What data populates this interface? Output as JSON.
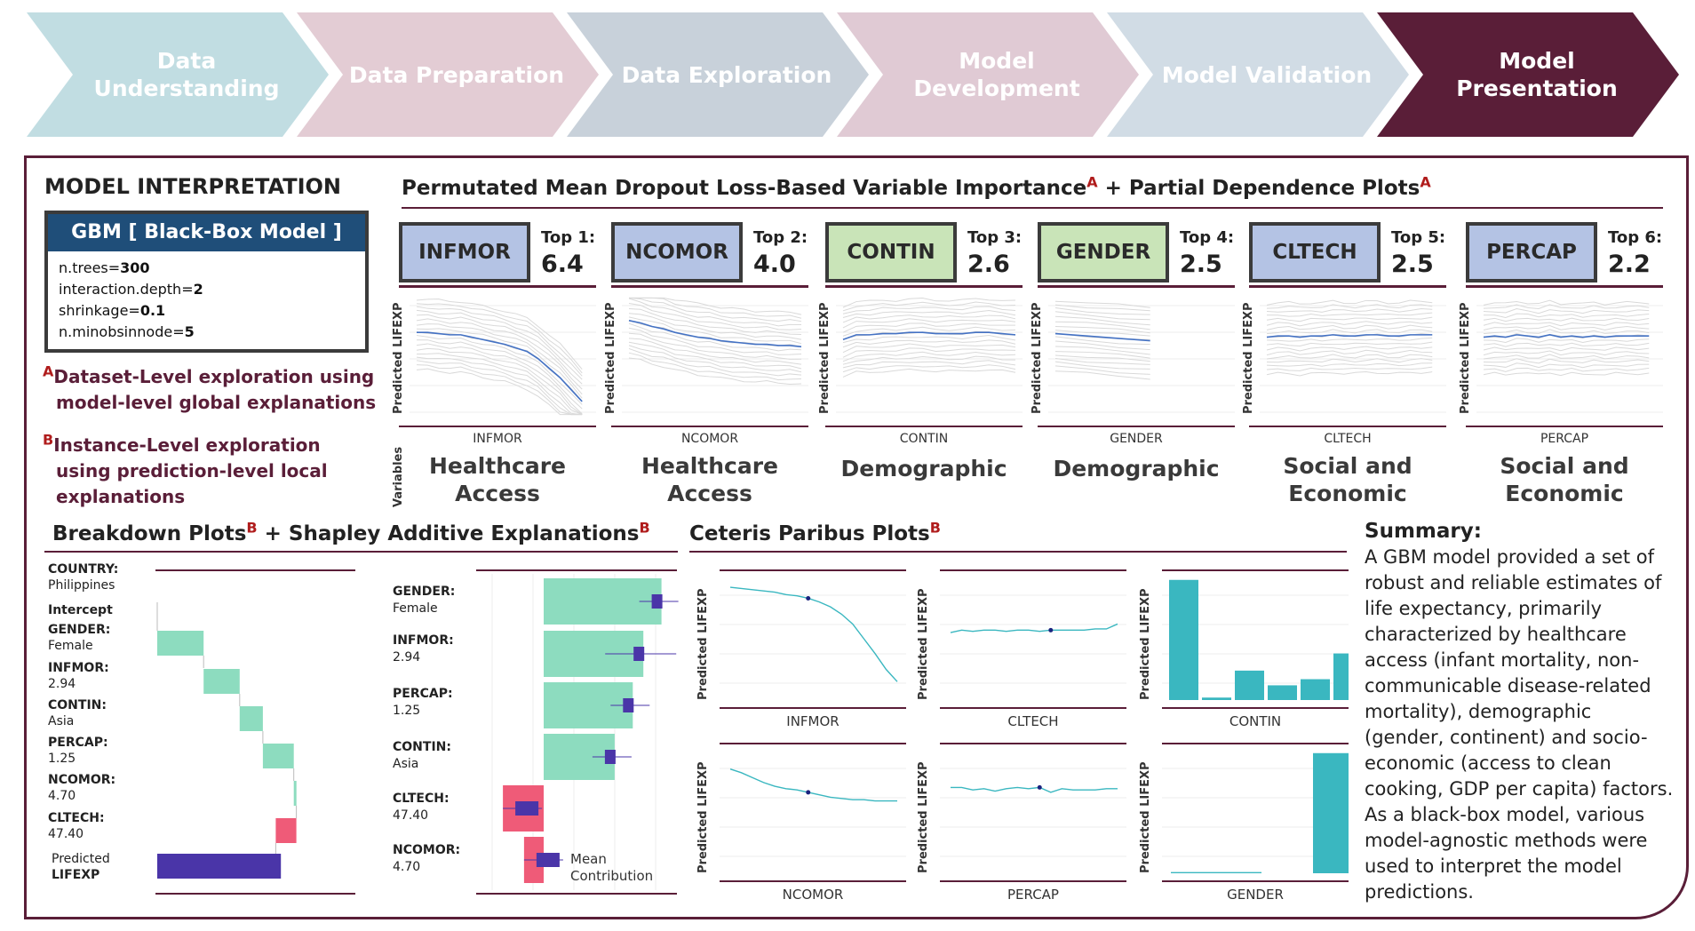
{
  "pipeline": [
    {
      "label": "Data Understanding",
      "color": "#c1dde2"
    },
    {
      "label": "Data Preparation",
      "color": "#e3ccd4"
    },
    {
      "label": "Data Exploration",
      "color": "#c8d1da"
    },
    {
      "label": "Model Development",
      "color": "#e0cad4"
    },
    {
      "label": "Model Validation",
      "color": "#d1dce5"
    },
    {
      "label": "Model Presentation",
      "color": "#5a1e38"
    }
  ],
  "interpretation": {
    "title": "MODEL INTERPRETATION",
    "model_name": "GBM [ Black-Box Model ]",
    "params": [
      {
        "k": "n.trees=",
        "v": "300"
      },
      {
        "k": "interaction.depth=",
        "v": "2"
      },
      {
        "k": "shrinkage=",
        "v": "0.1"
      },
      {
        "k": "n.minobsinnode=",
        "v": "5"
      }
    ],
    "note_a_letter": "A",
    "note_a_line1": "Dataset-Level exploration using",
    "note_a_line2": "model-level global explanations",
    "note_b_letter": "B",
    "note_b_line1": "Instance-Level exploration",
    "note_b_line2": "using prediction-level local",
    "note_b_line3": "explanations"
  },
  "importance": {
    "title_part1": "Permutated Mean Dropout Loss-Based Variable Importance",
    "sup1": "A",
    "title_part2": " + Partial Dependence Plots",
    "sup2": "A",
    "ylabel": "Predicted LIFEXP",
    "vars_axis_label": "Variables",
    "columns": [
      {
        "var": "INFMOR",
        "rank": "Top 1:",
        "value": "6.4",
        "category_line1": "Healthcare",
        "category_line2": "Access",
        "tag_color": "#b4c3e4",
        "trend": [
          0.7,
          0.7,
          0.69,
          0.68,
          0.68,
          0.66,
          0.64,
          0.62,
          0.6,
          0.57,
          0.54,
          0.48,
          0.4,
          0.32,
          0.22,
          0.12
        ]
      },
      {
        "var": "NCOMOR",
        "rank": "Top 2:",
        "value": "4.0",
        "category_line1": "Healthcare",
        "category_line2": "Access",
        "tag_color": "#b4c3e4",
        "trend": [
          0.8,
          0.78,
          0.75,
          0.73,
          0.7,
          0.68,
          0.66,
          0.65,
          0.63,
          0.62,
          0.61,
          0.6,
          0.6,
          0.59,
          0.59,
          0.58
        ]
      },
      {
        "var": "CONTIN",
        "rank": "Top 3:",
        "value": "2.6",
        "category_line1": "Demographic",
        "category_line2": "",
        "tag_color": "#c9e4b8",
        "trend": [
          0.64,
          0.68,
          0.68,
          0.69,
          0.69,
          0.7,
          0.7,
          0.69,
          0.69,
          0.69,
          0.7,
          0.7,
          0.69,
          0.68
        ]
      },
      {
        "var": "GENDER",
        "rank": "Top 4:",
        "value": "2.5",
        "category_line1": "Demographic",
        "category_line2": "",
        "tag_color": "#c9e4b8",
        "trend": [
          0.69,
          0.67,
          0.65,
          0.63
        ]
      },
      {
        "var": "CLTECH",
        "rank": "Top 5:",
        "value": "2.5",
        "category_line1": "Social and",
        "category_line2": "Economic",
        "tag_color": "#b4c3e4",
        "trend": [
          0.66,
          0.67,
          0.67,
          0.66,
          0.67,
          0.67,
          0.68,
          0.67,
          0.67,
          0.68,
          0.68,
          0.67,
          0.67,
          0.68,
          0.68,
          0.68
        ]
      },
      {
        "var": "PERCAP",
        "rank": "Top 6:",
        "value": "2.2",
        "category_line1": "Social and",
        "category_line2": "Economic",
        "tag_color": "#b4c3e4",
        "trend": [
          0.66,
          0.67,
          0.66,
          0.68,
          0.67,
          0.66,
          0.68,
          0.66,
          0.67,
          0.66,
          0.67,
          0.66,
          0.67,
          0.67,
          0.67,
          0.67
        ]
      }
    ]
  },
  "breakdown": {
    "title_part1": "Breakdown Plots",
    "sup1": "B",
    "title_part2": " + Shapley Additive Explanations",
    "sup2": "B",
    "country_key": "COUNTRY:",
    "country_value": "Philippines",
    "intercept_label": "Intercept",
    "predicted_line1": "Predicted",
    "predicted_line2": "LIFEXP",
    "rows": [
      {
        "k": "GENDER:",
        "v": "Female"
      },
      {
        "k": "INFMOR:",
        "v": "2.94"
      },
      {
        "k": "CONTIN:",
        "v": "Asia"
      },
      {
        "k": "PERCAP:",
        "v": "1.25"
      },
      {
        "k": "NCOMOR:",
        "v": "4.70"
      },
      {
        "k": "CLTECH:",
        "v": "47.40"
      }
    ],
    "waterfall_steps": [
      3.6,
      2.8,
      1.8,
      2.4,
      0.2,
      -1.6
    ],
    "predicted_value": 9.6,
    "shap_rows": [
      {
        "k": "GENDER:",
        "v": "Female",
        "value": 7.8
      },
      {
        "k": "INFMOR:",
        "v": "2.94",
        "value": 6.6
      },
      {
        "k": "PERCAP:",
        "v": "1.25",
        "value": 5.9
      },
      {
        "k": "CONTIN:",
        "v": "Asia",
        "value": 4.7
      },
      {
        "k": "CLTECH:",
        "v": "47.40",
        "value": -2.7
      },
      {
        "k": "NCOMOR:",
        "v": "4.70",
        "value": -1.3
      }
    ],
    "mean_line1": "Mean",
    "mean_line2": "Contribution",
    "colors": {
      "positive": "#8ddcbf",
      "negative": "#ef5b78",
      "predicted": "#4a35a8"
    }
  },
  "ceteris": {
    "title": "Ceteris Paribus Plots",
    "sup": "B",
    "ylabel": "Predicted LIFEXP",
    "line_color": "#3ab7c0",
    "plots": [
      {
        "var": "INFMOR",
        "kind": "line",
        "values": [
          0.92,
          0.91,
          0.9,
          0.89,
          0.88,
          0.86,
          0.85,
          0.83,
          0.8,
          0.76,
          0.7,
          0.62,
          0.5,
          0.38,
          0.25,
          0.15
        ],
        "marker_index": 7
      },
      {
        "var": "CLTECH",
        "kind": "line",
        "values": [
          0.55,
          0.57,
          0.56,
          0.57,
          0.57,
          0.56,
          0.57,
          0.57,
          0.56,
          0.57,
          0.57,
          0.57,
          0.57,
          0.58,
          0.58,
          0.62
        ],
        "marker_index": 9
      },
      {
        "var": "CONTIN",
        "kind": "bar",
        "values": [
          0.98,
          0.02,
          0.24,
          0.12,
          0.17,
          0.38
        ],
        "marker_index": 1
      },
      {
        "var": "NCOMOR",
        "kind": "line",
        "values": [
          0.85,
          0.82,
          0.78,
          0.74,
          0.71,
          0.69,
          0.68,
          0.66,
          0.64,
          0.62,
          0.61,
          0.6,
          0.6,
          0.59,
          0.59,
          0.59
        ],
        "marker_index": 7
      },
      {
        "var": "PERCAP",
        "kind": "line",
        "values": [
          0.7,
          0.7,
          0.68,
          0.69,
          0.67,
          0.69,
          0.7,
          0.69,
          0.7,
          0.66,
          0.69,
          0.68,
          0.68,
          0.68,
          0.69,
          0.69
        ],
        "marker_index": 8
      },
      {
        "var": "GENDER",
        "kind": "bar",
        "values": [
          0.01,
          0.98
        ],
        "marker_index": 0
      }
    ]
  },
  "summary": {
    "title": "Summary:",
    "text": "A GBM model provided a set of robust and reliable estimates of life expectancy, primarily characterized by healthcare access (infant mortality, non-communicable disease-related mortality), demographic (gender, continent) and socio-economic (access to clean cooking, GDP per capita) factors. As a black-box model, various model-agnostic methods were used to interpret the model predictions."
  }
}
